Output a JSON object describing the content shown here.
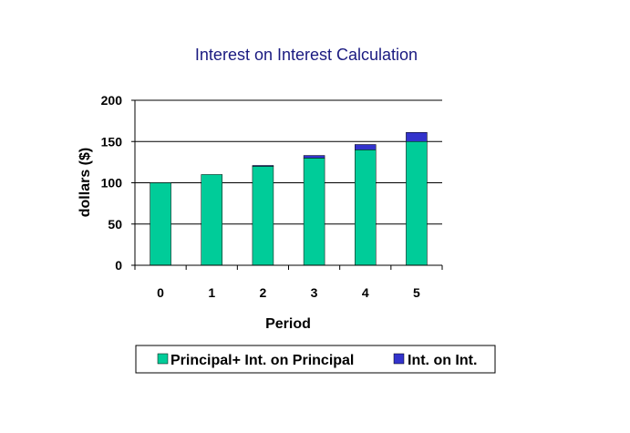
{
  "chart_data": {
    "type": "bar",
    "stacked": true,
    "title": "Interest on Interest Calculation",
    "xlabel": "Period",
    "ylabel": "dollars ($)",
    "categories": [
      "0",
      "1",
      "2",
      "3",
      "4",
      "5"
    ],
    "series": [
      {
        "name": "Principal+ Int. on Principal",
        "color": "#00cc99",
        "values": [
          100,
          110,
          120,
          130,
          140,
          150
        ]
      },
      {
        "name": "Int. on Int.",
        "color": "#3333cc",
        "values": [
          0,
          0,
          1,
          3.1,
          6.4,
          11.05
        ]
      }
    ],
    "ylim": [
      0,
      200
    ],
    "yticks": [
      "0",
      "50",
      "100",
      "150",
      "200"
    ],
    "grid": true,
    "legend": "bottom"
  }
}
